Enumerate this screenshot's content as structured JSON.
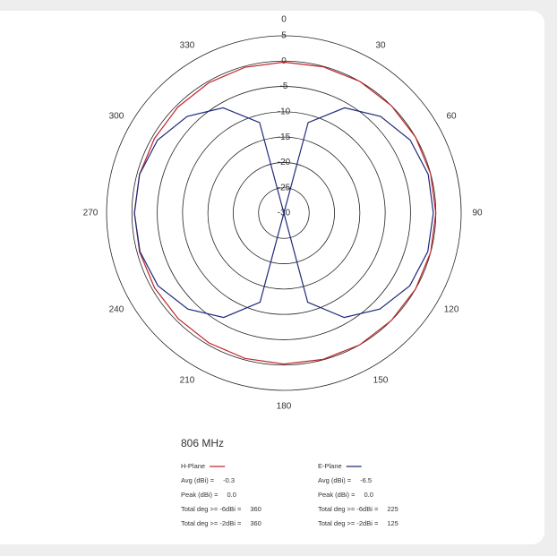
{
  "chart_data": {
    "type": "polar",
    "title": "806 MHz",
    "rlim": [
      -30,
      5
    ],
    "rticks": [
      -30,
      -25,
      -20,
      -15,
      -10,
      -5,
      0,
      5
    ],
    "angle_ticks": [
      0,
      30,
      60,
      90,
      120,
      150,
      180,
      210,
      240,
      270,
      300,
      330
    ],
    "theta": [
      0,
      15,
      30,
      45,
      60,
      75,
      90,
      105,
      120,
      135,
      150,
      165,
      180,
      195,
      210,
      225,
      240,
      255,
      270,
      285,
      300,
      315,
      330,
      345
    ],
    "series": [
      {
        "name": "H-Plane",
        "color": "#c0262d",
        "values": [
          -0.2,
          -0.1,
          0,
          0,
          0,
          0,
          0,
          0,
          0,
          0,
          0,
          -0.1,
          -0.2,
          -0.3,
          -0.4,
          -0.5,
          -0.5,
          -0.5,
          -0.5,
          -0.5,
          -0.5,
          -0.4,
          -0.3,
          -0.2
        ],
        "stats": [
          {
            "label": "Avg (dBi) =",
            "value": -0.3
          },
          {
            "label": "Peak (dBi) =",
            "value": 0,
            "value_label": "0.0"
          },
          {
            "label": "Total deg >= -6dBi =",
            "value": 360
          },
          {
            "label": "Total deg >= -2dBi =",
            "value": 360
          }
        ]
      },
      {
        "name": "E-Plane",
        "color": "#1f2a7a",
        "values": [
          -30,
          -11.5,
          -6,
          -3,
          -1.2,
          -0.5,
          -0.5,
          -0.6,
          -1.3,
          -3.2,
          -6.2,
          -11.8,
          -30,
          -11.8,
          -6.2,
          -3.2,
          -1.3,
          -0.6,
          -0.5,
          -0.5,
          -1.2,
          -3,
          -6,
          -11.5
        ],
        "stats": [
          {
            "label": "Avg (dBi) =",
            "value": -6.5
          },
          {
            "label": "Peak (dBi) =",
            "value": 0,
            "value_label": "0.0"
          },
          {
            "label": "Total deg >= -6dBi =",
            "value": 225
          },
          {
            "label": "Total deg >= -2dBi =",
            "value": 125
          }
        ]
      }
    ]
  }
}
